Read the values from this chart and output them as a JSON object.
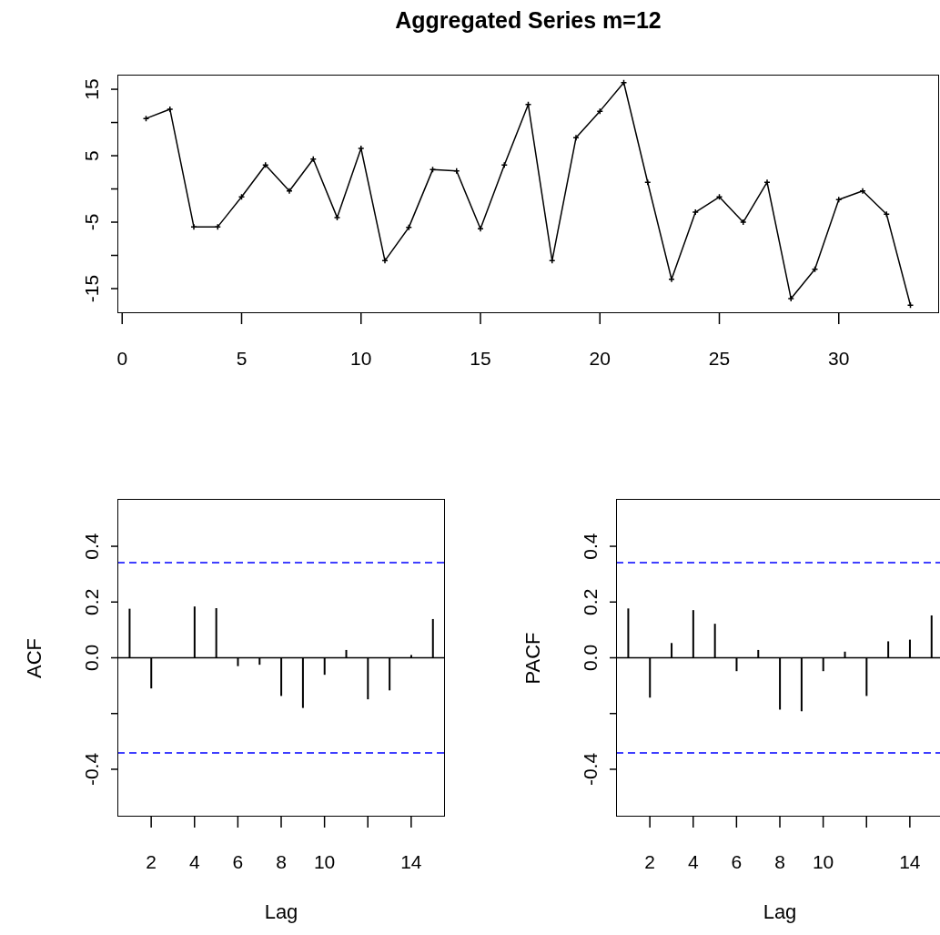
{
  "chart_data": [
    {
      "type": "line",
      "title": "Aggregated Series m=12",
      "x": [
        1,
        2,
        3,
        4,
        5,
        6,
        7,
        8,
        9,
        10,
        11,
        12,
        13,
        14,
        15,
        16,
        17,
        18,
        19,
        20,
        21,
        22,
        23,
        24,
        25,
        26,
        27,
        28,
        29,
        30,
        31,
        32,
        33
      ],
      "series": [
        {
          "color": "#000000",
          "values": [
            10.6,
            12.0,
            -5.7,
            -5.7,
            -1.2,
            3.6,
            -0.3,
            4.5,
            -4.3,
            6.1,
            -10.8,
            -5.8,
            2.9,
            2.7,
            -6.0,
            3.6,
            12.7,
            -10.8,
            7.7,
            11.7,
            16.0,
            1.0,
            -13.6,
            -3.5,
            -1.2,
            -5.0,
            1.0,
            -16.5,
            -12.1,
            -1.6,
            -0.3,
            -3.8,
            -17.5
          ]
        }
      ],
      "marker": "cross",
      "xlim": [
        -0.2,
        34.2
      ],
      "xticks": [
        0,
        5,
        10,
        15,
        20,
        25,
        30
      ],
      "ylim": [
        -18.7,
        17.2
      ],
      "yticks": [
        {
          "value": -15,
          "label": "-15"
        },
        {
          "value": -10,
          "label": null
        },
        {
          "value": -5,
          "label": "-5"
        },
        {
          "value": 0,
          "label": null
        },
        {
          "value": 5,
          "label": "5"
        },
        {
          "value": 10,
          "label": null
        },
        {
          "value": 15,
          "label": "15"
        }
      ]
    },
    {
      "type": "bar",
      "xlabel": "Lag",
      "ylabel": "ACF",
      "x": [
        1,
        2,
        3,
        4,
        5,
        6,
        7,
        8,
        9,
        10,
        11,
        12,
        13,
        14,
        15
      ],
      "series": [
        {
          "color": "#000000",
          "values": [
            0.176,
            -0.11,
            0,
            0.184,
            0.178,
            -0.03,
            -0.025,
            -0.137,
            -0.18,
            -0.061,
            0.028,
            -0.149,
            -0.117,
            0.01,
            0.139
          ]
        }
      ],
      "xlim": [
        0.44,
        15.56
      ],
      "xticks": [
        2,
        4,
        6,
        8,
        10,
        {
          "value": 12,
          "label": null
        },
        14
      ],
      "ylim": [
        -0.57,
        0.57
      ],
      "yticks": [
        {
          "value": -0.4,
          "label": "-0.4"
        },
        {
          "value": -0.2,
          "label": null
        },
        {
          "value": 0,
          "label": "0.0"
        },
        {
          "value": 0.2,
          "label": "0.2"
        },
        {
          "value": 0.4,
          "label": "0.4"
        }
      ],
      "ref_lines": [
        {
          "axis": "y",
          "value": 0.341,
          "color": "#0000ff",
          "line_style": "dashed"
        },
        {
          "axis": "y",
          "value": -0.341,
          "color": "#0000ff",
          "line_style": "dashed"
        },
        {
          "axis": "y",
          "value": 0,
          "color": "#000000",
          "line_style": "solid"
        }
      ]
    },
    {
      "type": "bar",
      "xlabel": "Lag",
      "ylabel": "PACF",
      "x": [
        1,
        2,
        3,
        4,
        5,
        6,
        7,
        8,
        9,
        10,
        11,
        12,
        13,
        14,
        15
      ],
      "series": [
        {
          "color": "#000000",
          "values": [
            0.177,
            -0.143,
            0.053,
            0.171,
            0.122,
            -0.048,
            0.028,
            -0.186,
            -0.192,
            -0.048,
            0.022,
            -0.137,
            0.059,
            0.065,
            0.152
          ]
        }
      ],
      "xlim": [
        0.44,
        15.56
      ],
      "xticks": [
        2,
        4,
        6,
        8,
        10,
        {
          "value": 12,
          "label": null
        },
        14
      ],
      "ylim": [
        -0.57,
        0.57
      ],
      "yticks": [
        {
          "value": -0.4,
          "label": "-0.4"
        },
        {
          "value": -0.2,
          "label": null
        },
        {
          "value": 0,
          "label": "0.0"
        },
        {
          "value": 0.2,
          "label": "0.2"
        },
        {
          "value": 0.4,
          "label": "0.4"
        }
      ],
      "ref_lines": [
        {
          "axis": "y",
          "value": 0.341,
          "color": "#0000ff",
          "line_style": "dashed"
        },
        {
          "axis": "y",
          "value": -0.341,
          "color": "#0000ff",
          "line_style": "dashed"
        },
        {
          "axis": "y",
          "value": 0,
          "color": "#000000",
          "line_style": "solid"
        }
      ]
    }
  ]
}
